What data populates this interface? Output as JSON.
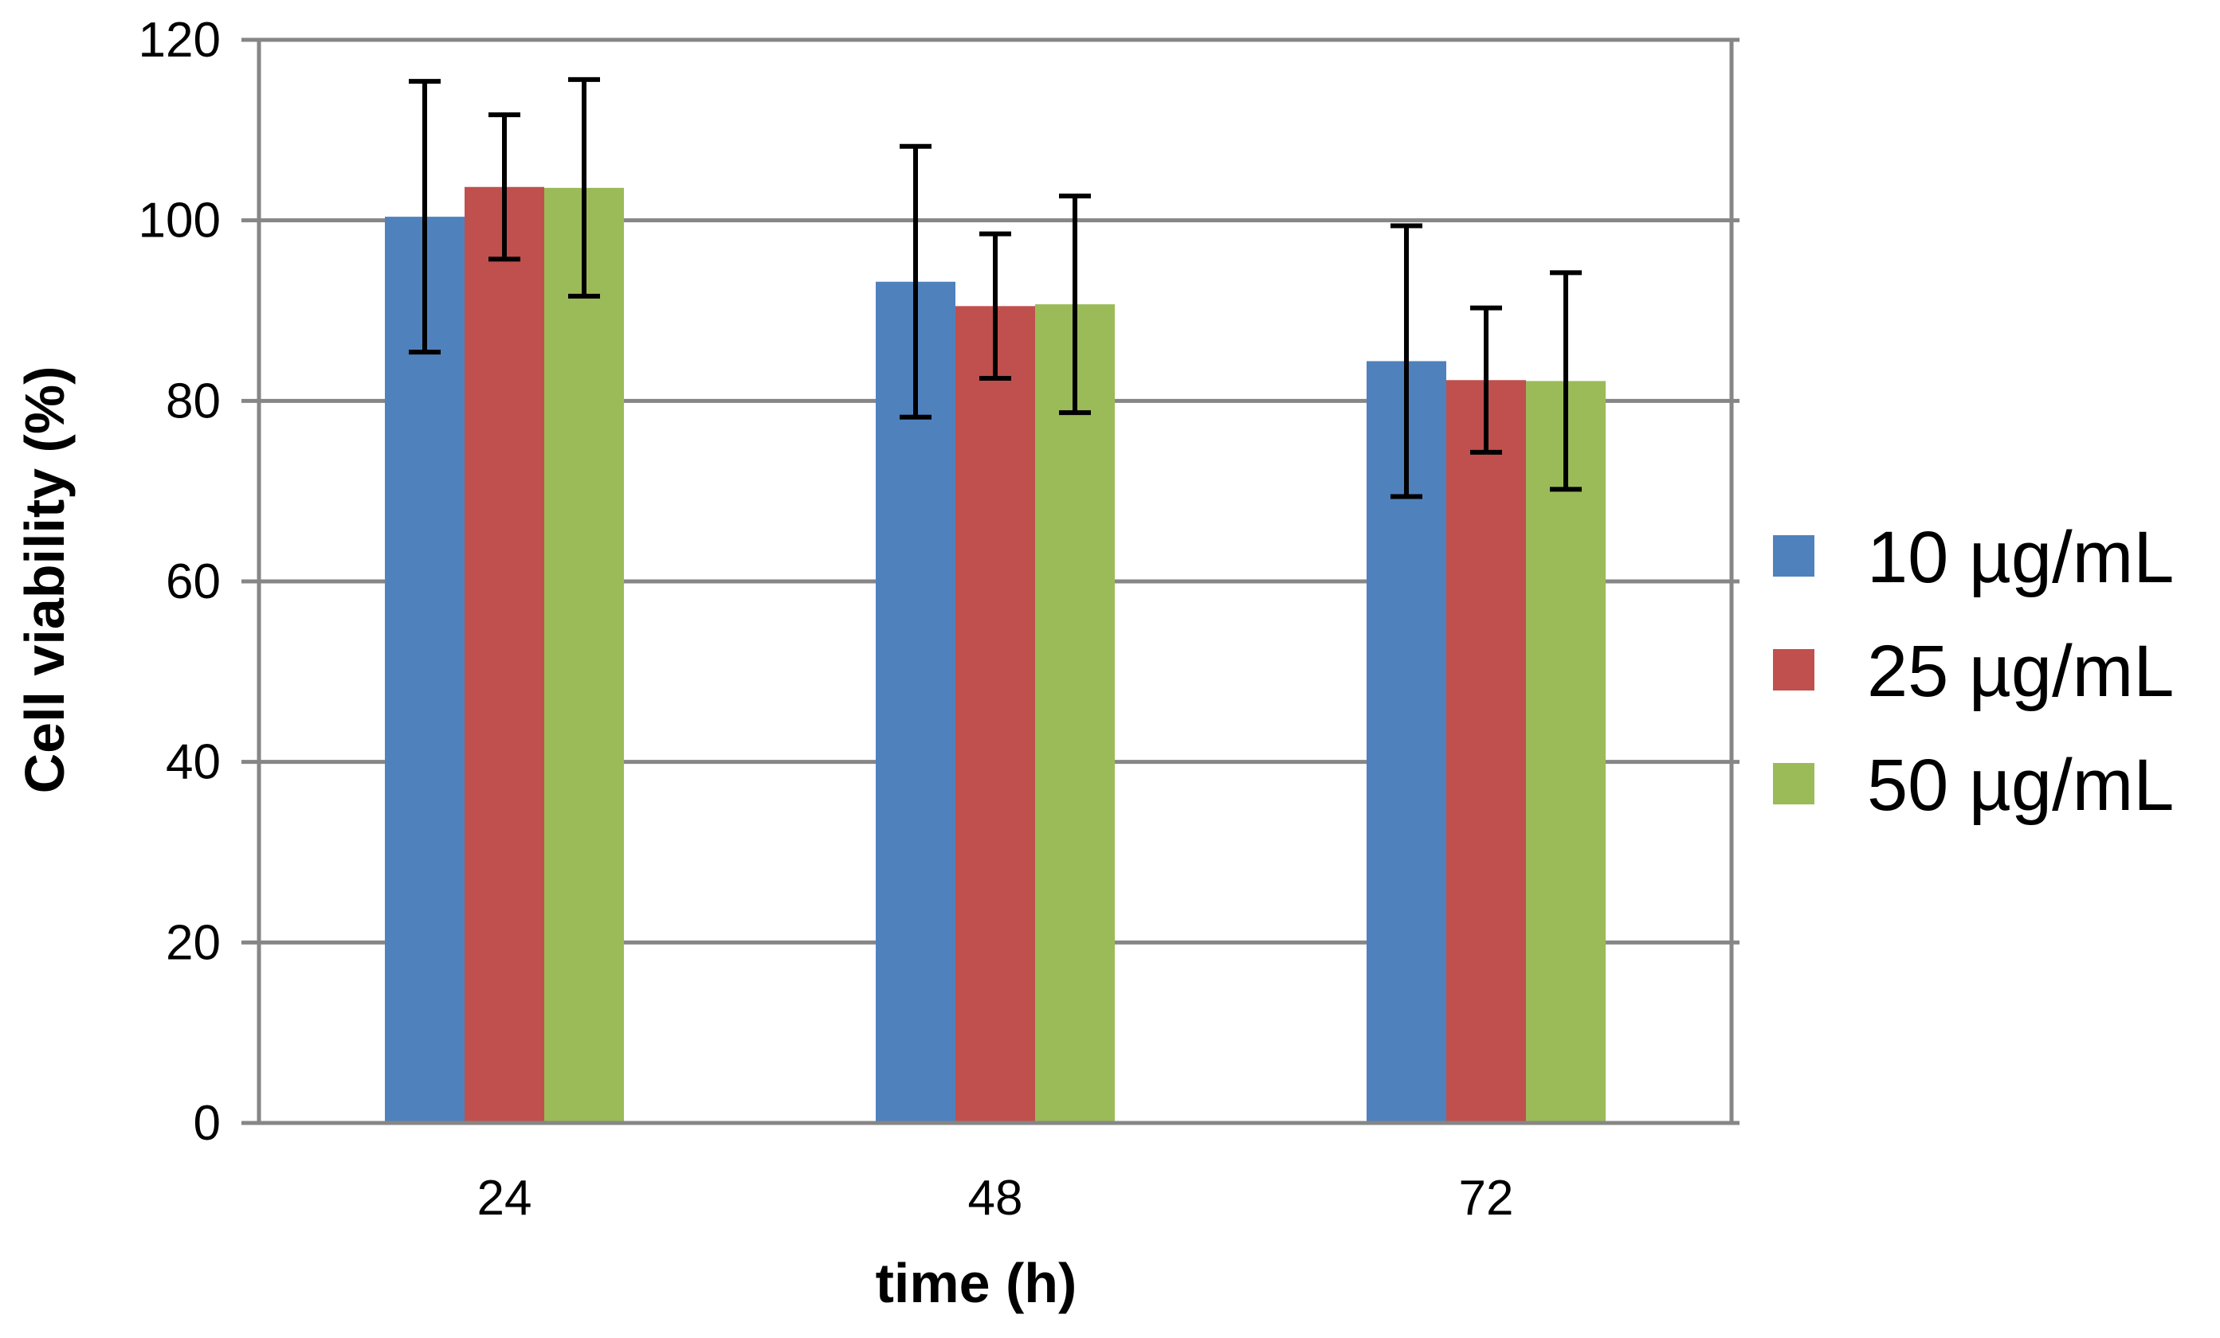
{
  "chart_data": {
    "type": "bar",
    "title": "",
    "xlabel": "time (h)",
    "ylabel": "Cell viability (%)",
    "ylim": [
      0,
      120
    ],
    "yticks": [
      0,
      20,
      40,
      60,
      80,
      100,
      120
    ],
    "ytick_labels": [
      "0",
      "20",
      "40",
      "60",
      "80",
      "100",
      "120"
    ],
    "grid": true,
    "legend_position": "right",
    "categories": [
      "24",
      "48",
      "72"
    ],
    "series": [
      {
        "name": "10 µg/mL",
        "color": "#4F81BD",
        "values": [
          100.4,
          93.2,
          84.4
        ],
        "errors": [
          15.0,
          15.0,
          15.0
        ]
      },
      {
        "name": "25 µg/mL",
        "color": "#C0504D",
        "values": [
          103.7,
          90.5,
          82.3
        ],
        "errors": [
          8.0,
          8.0,
          8.0
        ]
      },
      {
        "name": "50 µg/mL",
        "color": "#9BBB59",
        "values": [
          103.6,
          90.7,
          82.2
        ],
        "errors": [
          12.0,
          12.0,
          12.0
        ]
      }
    ],
    "colors": {
      "grid": "#868686",
      "axis": "#868686",
      "error_bar": "#000000"
    }
  }
}
